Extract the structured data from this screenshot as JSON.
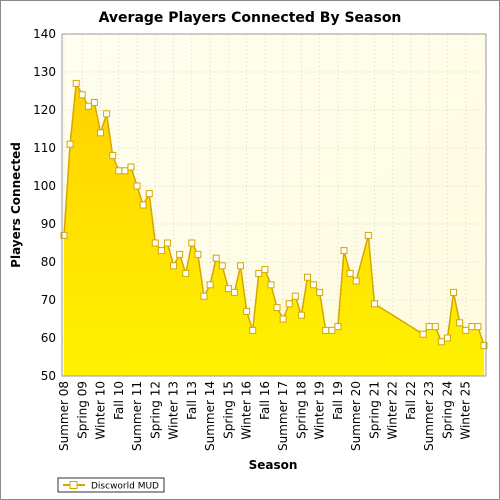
{
  "chart_data": {
    "type": "area",
    "title": "Average Players Connected By Season",
    "xlabel": "Season",
    "ylabel": "Players Connected",
    "ylim": [
      50,
      140
    ],
    "yticks": [
      50,
      60,
      70,
      80,
      90,
      100,
      110,
      120,
      130,
      140
    ],
    "grid": true,
    "legend_placement": "bottom-left",
    "x_tick_labels": [
      "Summer 08",
      "Spring 09",
      "Winter 10",
      "Fall 10",
      "Summer 11",
      "Spring 12",
      "Winter 13",
      "Fall 13",
      "Summer 14",
      "Spring 15",
      "Winter 16",
      "Fall 16",
      "Summer 17",
      "Spring 18",
      "Winter 19",
      "Fall 19",
      "Summer 20",
      "Spring 21",
      "Winter 22",
      "Fall 22",
      "Summer 23",
      "Spring 24",
      "Winter 25"
    ],
    "colors": {
      "fill_top": "#ffd200",
      "fill_bottom": "#fff200",
      "line": "#d4a800",
      "marker_fill": "#ffffff",
      "plot_bg": "#fffde8"
    },
    "series": [
      {
        "name": "Discworld MUD",
        "points": [
          {
            "x": 0,
            "y": 87
          },
          {
            "x": 1,
            "y": 111
          },
          {
            "x": 2,
            "y": 127
          },
          {
            "x": 3,
            "y": 124
          },
          {
            "x": 4,
            "y": 121
          },
          {
            "x": 5,
            "y": 122
          },
          {
            "x": 6,
            "y": 114
          },
          {
            "x": 7,
            "y": 119
          },
          {
            "x": 8,
            "y": 108
          },
          {
            "x": 9,
            "y": 104
          },
          {
            "x": 10,
            "y": 104
          },
          {
            "x": 11,
            "y": 105
          },
          {
            "x": 12,
            "y": 100
          },
          {
            "x": 13,
            "y": 95
          },
          {
            "x": 14,
            "y": 98
          },
          {
            "x": 15,
            "y": 85
          },
          {
            "x": 16,
            "y": 83
          },
          {
            "x": 17,
            "y": 85
          },
          {
            "x": 18,
            "y": 79
          },
          {
            "x": 19,
            "y": 82
          },
          {
            "x": 20,
            "y": 77
          },
          {
            "x": 21,
            "y": 85
          },
          {
            "x": 22,
            "y": 82
          },
          {
            "x": 23,
            "y": 71
          },
          {
            "x": 24,
            "y": 74
          },
          {
            "x": 25,
            "y": 81
          },
          {
            "x": 26,
            "y": 79
          },
          {
            "x": 27,
            "y": 73
          },
          {
            "x": 28,
            "y": 72
          },
          {
            "x": 29,
            "y": 79
          },
          {
            "x": 30,
            "y": 67
          },
          {
            "x": 31,
            "y": 62
          },
          {
            "x": 32,
            "y": 77
          },
          {
            "x": 33,
            "y": 78
          },
          {
            "x": 34,
            "y": 74
          },
          {
            "x": 35,
            "y": 68
          },
          {
            "x": 36,
            "y": 65
          },
          {
            "x": 37,
            "y": 69
          },
          {
            "x": 38,
            "y": 71
          },
          {
            "x": 39,
            "y": 66
          },
          {
            "x": 40,
            "y": 76
          },
          {
            "x": 41,
            "y": 74
          },
          {
            "x": 42,
            "y": 72
          },
          {
            "x": 43,
            "y": 62
          },
          {
            "x": 44,
            "y": 62
          },
          {
            "x": 45,
            "y": 63
          },
          {
            "x": 46,
            "y": 83
          },
          {
            "x": 47,
            "y": 77
          },
          {
            "x": 48,
            "y": 75
          },
          {
            "x": 50,
            "y": 87
          },
          {
            "x": 51,
            "y": 69
          },
          {
            "x": 59,
            "y": 61
          },
          {
            "x": 60,
            "y": 63
          },
          {
            "x": 61,
            "y": 63
          },
          {
            "x": 62,
            "y": 59
          },
          {
            "x": 63,
            "y": 60
          },
          {
            "x": 64,
            "y": 72
          },
          {
            "x": 65,
            "y": 64
          },
          {
            "x": 66,
            "y": 62
          },
          {
            "x": 67,
            "y": 63
          },
          {
            "x": 68,
            "y": 63
          },
          {
            "x": 69,
            "y": 58
          }
        ]
      }
    ]
  }
}
